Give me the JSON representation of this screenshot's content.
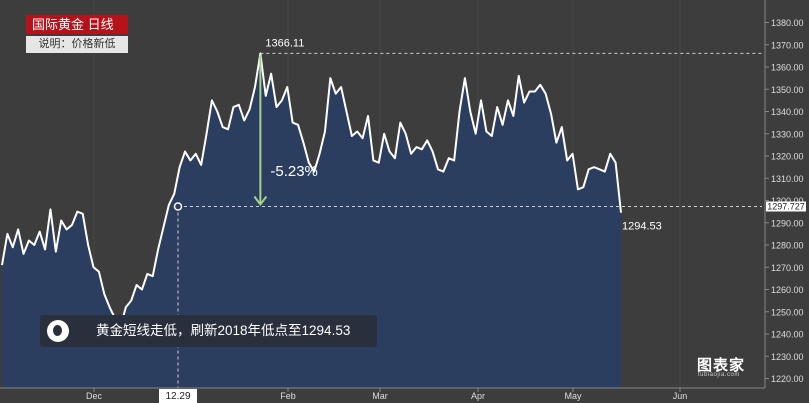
{
  "header": {
    "title": "国际黄金  日线",
    "subtitle": "说明：价格新低"
  },
  "callouts": {
    "high_label": "1366.11",
    "low_label": "1294.53",
    "change_label": "-5.23%",
    "last_price_tag": "1297.727",
    "date_tag": "12.29",
    "news": "黄金短线走低，刷新2018年低点至1294.53"
  },
  "logo": {
    "text": "图表家",
    "sub": "tubiaojia.com"
  },
  "colors": {
    "background": "#3d3d3d",
    "area_fill": "#2c3e5f",
    "line": "#ffffff",
    "arrow": "#a6d38a",
    "title_red": "#b5121b"
  },
  "chart_data": {
    "type": "area",
    "title": "国际黄金  日线",
    "xlabel": "",
    "ylabel": "",
    "ylim": [
      1215,
      1385
    ],
    "yticks": [
      1220,
      1230,
      1240,
      1250,
      1260,
      1270,
      1280,
      1290,
      1300,
      1310,
      1320,
      1330,
      1340,
      1350,
      1360,
      1370,
      1380
    ],
    "xticks": [
      "Dec",
      "Feb",
      "Mar",
      "Apr",
      "May",
      "Jun"
    ],
    "grid": false,
    "legend": "none",
    "values": [
      1271,
      1285,
      1279,
      1287,
      1276,
      1282,
      1280,
      1286,
      1278,
      1296,
      1277,
      1291,
      1287,
      1289,
      1295,
      1294,
      1280,
      1270,
      1268,
      1258,
      1252,
      1247,
      1243,
      1252,
      1255,
      1262,
      1260,
      1267,
      1266,
      1278,
      1288,
      1298,
      1303,
      1315,
      1322,
      1318,
      1321,
      1316,
      1330,
      1345,
      1340,
      1333,
      1332,
      1342,
      1343,
      1336,
      1341,
      1351,
      1366.11,
      1347,
      1357,
      1342,
      1345,
      1351,
      1335,
      1334,
      1326,
      1317,
      1313,
      1321,
      1331,
      1355,
      1348,
      1351,
      1340,
      1329,
      1331,
      1328,
      1338,
      1318,
      1317,
      1330,
      1322,
      1319,
      1335,
      1330,
      1321,
      1324,
      1323,
      1327,
      1322,
      1314,
      1313,
      1319,
      1318,
      1340,
      1355,
      1340,
      1330,
      1345,
      1331,
      1329,
      1342,
      1334,
      1345,
      1338,
      1356,
      1344,
      1349,
      1349,
      1352,
      1348,
      1339,
      1326,
      1333,
      1318,
      1321,
      1305,
      1306,
      1314,
      1315,
      1314,
      1313,
      1321,
      1317,
      1294.53
    ],
    "annotations": [
      {
        "text": "1366.11",
        "type": "high"
      },
      {
        "text": "1294.53",
        "type": "low"
      },
      {
        "text": "-5.23%",
        "type": "change"
      }
    ]
  }
}
